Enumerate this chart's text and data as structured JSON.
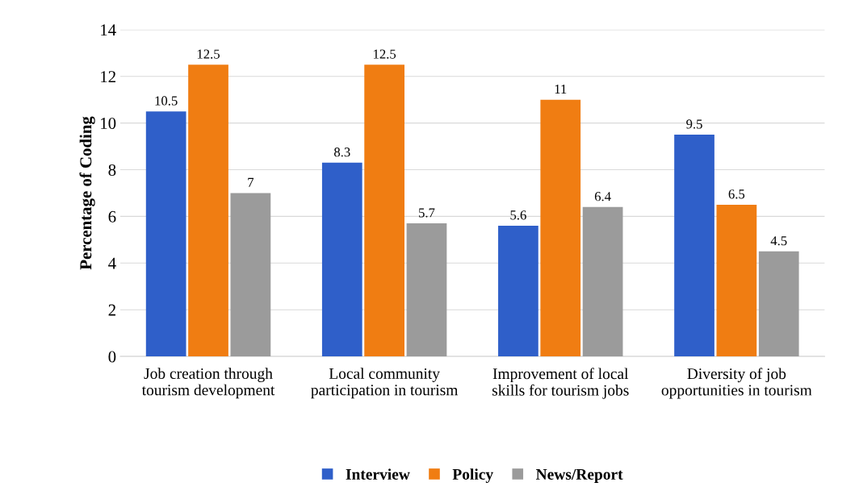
{
  "chart_data": {
    "type": "bar",
    "ylabel": "Percentage of Coding",
    "categories": [
      "Job creation through tourism development",
      "Local community participation in tourism",
      "Improvement of local skills for tourism jobs",
      "Diversity of job opportunities in tourism"
    ],
    "series": [
      {
        "name": "Interview",
        "color": "#2f5fc9",
        "values": [
          10.5,
          8.3,
          5.6,
          9.5
        ]
      },
      {
        "name": "Policy",
        "color": "#f07d12",
        "values": [
          12.5,
          12.5,
          11,
          6.5
        ]
      },
      {
        "name": "News/Report",
        "color": "#9b9b9b",
        "values": [
          7,
          5.7,
          6.4,
          4.5
        ]
      }
    ],
    "ylim": [
      0,
      14
    ],
    "yticks": [
      0,
      2,
      4,
      6,
      8,
      10,
      12,
      14
    ],
    "grid": "y",
    "legend": "bottom",
    "data_labels": true
  }
}
